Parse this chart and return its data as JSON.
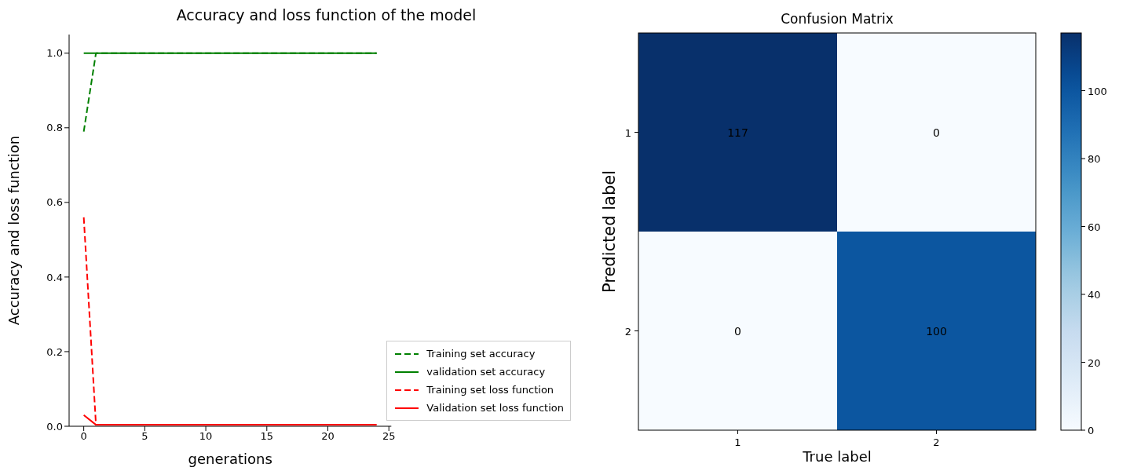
{
  "chart_data": [
    {
      "type": "line",
      "title": "Accuracy and loss function of the model",
      "xlabel": "generations",
      "ylabel": "Accuracy and loss function",
      "x": [
        0,
        1,
        2,
        3,
        4,
        5,
        6,
        7,
        8,
        9,
        10,
        11,
        12,
        13,
        14,
        15,
        16,
        17,
        18,
        19,
        20,
        21,
        22,
        23,
        24
      ],
      "series": [
        {
          "name": "Training set accuracy",
          "color": "#008000",
          "line_style": "dashed",
          "values": [
            0.79,
            1,
            1,
            1,
            1,
            1,
            1,
            1,
            1,
            1,
            1,
            1,
            1,
            1,
            1,
            1,
            1,
            1,
            1,
            1,
            1,
            1,
            1,
            1,
            1
          ]
        },
        {
          "name": "validation set accuracy",
          "color": "#008000",
          "line_style": "solid",
          "values": [
            1,
            1,
            1,
            1,
            1,
            1,
            1,
            1,
            1,
            1,
            1,
            1,
            1,
            1,
            1,
            1,
            1,
            1,
            1,
            1,
            1,
            1,
            1,
            1,
            1
          ]
        },
        {
          "name": "Training set loss function",
          "color": "#ff0000",
          "line_style": "dashed",
          "values": [
            0.56,
            0.004,
            0.004,
            0.004,
            0.004,
            0.004,
            0.004,
            0.004,
            0.004,
            0.004,
            0.004,
            0.004,
            0.004,
            0.004,
            0.004,
            0.004,
            0.004,
            0.004,
            0.004,
            0.004,
            0.004,
            0.004,
            0.004,
            0.004,
            0.004
          ]
        },
        {
          "name": "Validation set loss function",
          "color": "#ff0000",
          "line_style": "solid",
          "values": [
            0.03,
            0.004,
            0.004,
            0.004,
            0.004,
            0.004,
            0.004,
            0.004,
            0.004,
            0.004,
            0.004,
            0.004,
            0.004,
            0.004,
            0.004,
            0.004,
            0.004,
            0.004,
            0.004,
            0.004,
            0.004,
            0.004,
            0.004,
            0.004,
            0.004
          ]
        }
      ],
      "xlim": [
        -1.2,
        25.2
      ],
      "xticks": [
        0,
        5,
        10,
        15,
        20,
        25
      ],
      "ylim": [
        0,
        1.05
      ],
      "yticks": [
        {
          "value": 0,
          "label": "0.0"
        },
        {
          "value": 0.2,
          "label": "0.2"
        },
        {
          "value": 0.4,
          "label": "0.4"
        },
        {
          "value": 0.6,
          "label": "0.6"
        },
        {
          "value": 0.8,
          "label": "0.8"
        },
        {
          "value": 1,
          "label": "1.0"
        }
      ],
      "grid": false,
      "legend": "bottom right"
    },
    {
      "type": "heatmap",
      "title": "Confusion Matrix",
      "xlabel": "True label",
      "ylabel": "Predicted label",
      "categories": [
        "1",
        "2"
      ],
      "y_categories": [
        "1",
        "2"
      ],
      "cells": [
        [
          117,
          0
        ],
        [
          0,
          100
        ]
      ],
      "clim": [
        0,
        117
      ],
      "cticks": [
        0,
        20,
        40,
        60,
        80,
        100
      ],
      "data_labels": true
    }
  ]
}
